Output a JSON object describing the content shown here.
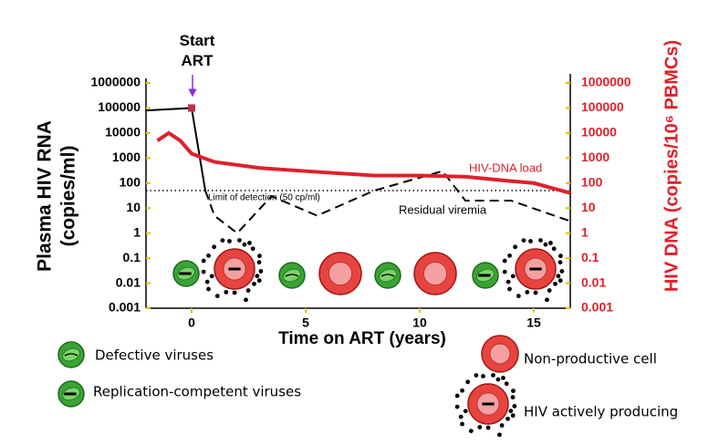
{
  "chart_data": {
    "type": "line",
    "annotation": "Start ART",
    "ylabel": [
      "Plasma HIV RNA",
      "(copies/ml)"
    ],
    "y2label": "HIV DNA (copies/10⁶ PBMCs)",
    "xlabel": "Time on ART (years)",
    "xlim": [
      -2,
      16.6
    ],
    "xticks": [
      0,
      5,
      10,
      15
    ],
    "ylim": [
      0.001,
      1000000
    ],
    "yticks": [
      1000000,
      100000,
      10000,
      1000,
      100,
      10,
      1,
      0.1,
      0.01,
      0.001
    ],
    "y2lim": [
      0.001,
      1000000
    ],
    "y2ticks": [
      1000000,
      100000,
      10000,
      1000,
      100,
      10,
      1,
      0.1,
      0.01,
      0.001
    ],
    "log_scale": true,
    "limit_of_detection": {
      "label": "Limit of detection (50 cp/ml)",
      "value": 50
    },
    "series": [
      {
        "color": "#000000",
        "marker_color": "#c0304b",
        "style": "solid",
        "x": [
          -2,
          0,
          0.6
        ],
        "values": [
          80000,
          100000,
          50
        ]
      },
      {
        "name": "Residual viremia",
        "color": "#000000",
        "style": "dashed",
        "x": [
          0.6,
          1,
          2,
          3.5,
          5.5,
          8,
          11,
          12,
          14,
          16.6
        ],
        "values": [
          50,
          5,
          1,
          30,
          5,
          50,
          300,
          20,
          20,
          3
        ]
      },
      {
        "name": "HIV-DNA load",
        "color": "#e0202a",
        "style": "solid",
        "axis": "y2",
        "x": [
          -1.5,
          -1,
          -0.5,
          0,
          1,
          3,
          5,
          8,
          10,
          12,
          14,
          15,
          16.6
        ],
        "values": [
          5000,
          10000,
          5000,
          1500,
          700,
          400,
          300,
          200,
          200,
          180,
          120,
          100,
          40
        ]
      }
    ],
    "cell_legend": [
      "Defective viruses",
      "Replication-competent viruses",
      "Non-productive cell",
      "HIV actively producing"
    ]
  }
}
